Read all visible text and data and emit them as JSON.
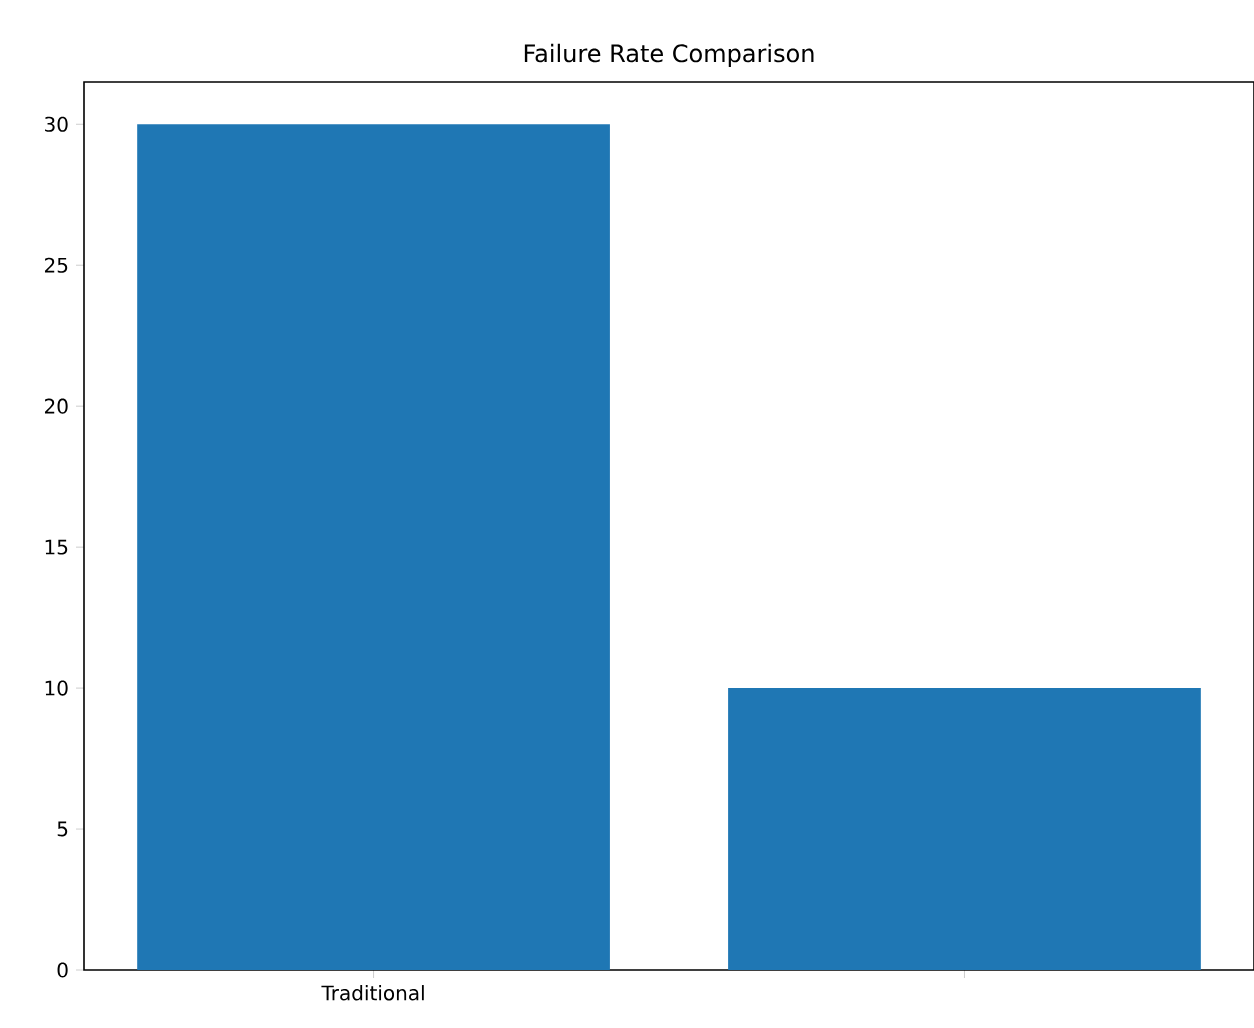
{
  "chart_data": {
    "type": "bar",
    "title": "Failure Rate Comparison",
    "categories": [
      "Traditional",
      null
    ],
    "values": [
      30,
      10
    ],
    "color": "#1f77b4",
    "ylim": [
      0,
      31.5
    ],
    "yticks": [
      0,
      5,
      10,
      15,
      20,
      25,
      30
    ]
  }
}
